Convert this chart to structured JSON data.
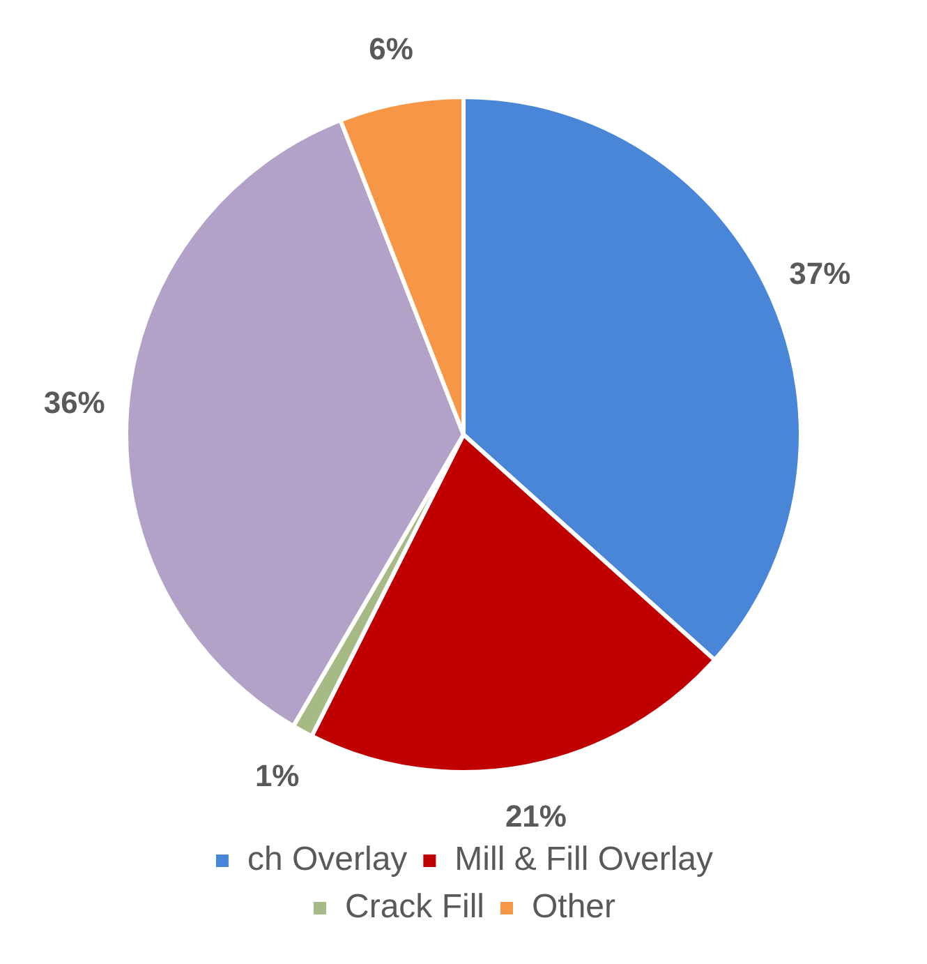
{
  "chart_data": {
    "type": "pie",
    "categories": [
      "ch Overlay",
      "Mill & Fill Overlay",
      "Crack Fill",
      null,
      "Other"
    ],
    "values": [
      37,
      21,
      1,
      36,
      6
    ],
    "colors": [
      "#4a86d8",
      "#c00000",
      "#a6ba85",
      "#b3a2c7",
      "#f79646"
    ],
    "value_labels": [
      "37%",
      "21%",
      "1%",
      "36%",
      "6%"
    ],
    "legend": "bottom"
  }
}
